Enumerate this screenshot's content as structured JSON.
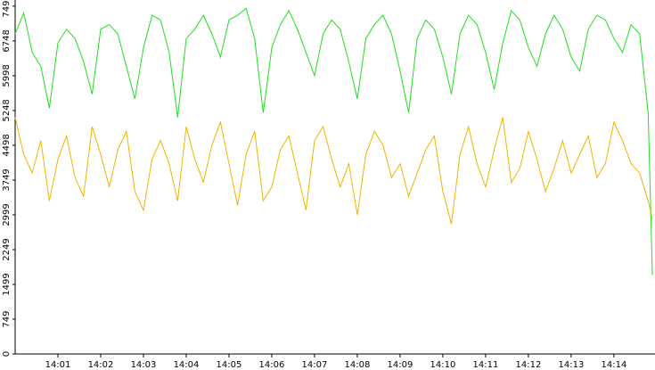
{
  "chart_data": {
    "type": "line",
    "x": [
      0,
      0.2,
      0.4,
      0.6,
      0.8,
      1,
      1.2,
      1.4,
      1.6,
      1.8,
      2,
      2.2,
      2.4,
      2.6,
      2.8,
      3,
      3.2,
      3.4,
      3.6,
      3.8,
      4,
      4.2,
      4.4,
      4.6,
      4.8,
      5,
      5.2,
      5.4,
      5.6,
      5.8,
      6,
      6.2,
      6.4,
      6.6,
      6.8,
      7,
      7.2,
      7.4,
      7.6,
      7.8,
      8,
      8.2,
      8.4,
      8.6,
      8.8,
      9,
      9.2,
      9.4,
      9.6,
      9.8,
      10,
      10.2,
      10.4,
      10.6,
      10.8,
      11,
      11.2,
      11.4,
      11.6,
      11.8,
      12,
      12.2,
      12.4,
      12.6,
      12.8,
      13,
      13.2,
      13.4,
      13.6,
      13.8,
      14,
      14.2,
      14.4,
      14.6,
      14.8,
      14.9
    ],
    "series": [
      {
        "color": "#22dd22",
        "values": [
          6900,
          7350,
          6500,
          6200,
          5300,
          6700,
          7000,
          6800,
          6300,
          5600,
          7000,
          7100,
          6900,
          6200,
          5500,
          6600,
          7300,
          7200,
          6500,
          5100,
          6800,
          7000,
          7300,
          6900,
          6400,
          7200,
          7300,
          7450,
          6800,
          5200,
          6600,
          7100,
          7400,
          7000,
          6500,
          6000,
          6900,
          7200,
          7000,
          6300,
          5500,
          6800,
          7100,
          7300,
          6900,
          6100,
          5200,
          6800,
          7200,
          7000,
          6400,
          5600,
          6900,
          7300,
          7100,
          6500,
          5700,
          6700,
          7400,
          7200,
          6600,
          6200,
          6900,
          7300,
          7000,
          6400,
          6100,
          7000,
          7300,
          7200,
          6800,
          6500,
          7100,
          6900,
          5200,
          1700
        ]
      },
      {
        "color": "#f0b400",
        "values": [
          5100,
          4300,
          3900,
          4600,
          3300,
          4200,
          4700,
          3800,
          3400,
          4900,
          4300,
          3600,
          4400,
          4800,
          3500,
          3100,
          4200,
          4600,
          4100,
          3300,
          4900,
          4200,
          3700,
          4500,
          5000,
          4100,
          3200,
          4300,
          4800,
          3300,
          3600,
          4400,
          4700,
          3900,
          3100,
          4600,
          4900,
          4200,
          3600,
          4100,
          3000,
          4300,
          4800,
          4500,
          3800,
          4100,
          3400,
          3900,
          4400,
          4700,
          3500,
          2800,
          4300,
          4900,
          4100,
          3600,
          4400,
          5100,
          3700,
          4000,
          4800,
          4200,
          3500,
          4000,
          4600,
          3900,
          4300,
          4700,
          3800,
          4100,
          5000,
          4600,
          4100,
          3900,
          3300,
          2900
        ]
      }
    ],
    "xlim": [
      0,
      14.96
    ],
    "xticks": [
      {
        "value": 1,
        "label": "14:01"
      },
      {
        "value": 2,
        "label": "14:02"
      },
      {
        "value": 3,
        "label": "14:03"
      },
      {
        "value": 4,
        "label": "14:04"
      },
      {
        "value": 5,
        "label": "14:05"
      },
      {
        "value": 6,
        "label": "14:06"
      },
      {
        "value": 7,
        "label": "14:07"
      },
      {
        "value": 8,
        "label": "14:08"
      },
      {
        "value": 9,
        "label": "14:09"
      },
      {
        "value": 10,
        "label": "14:10"
      },
      {
        "value": 11,
        "label": "14:11"
      },
      {
        "value": 12,
        "label": "14:12"
      },
      {
        "value": 13,
        "label": "14:13"
      },
      {
        "value": 14,
        "label": "14:14"
      }
    ],
    "ylim": [
      0,
      7630
    ],
    "yticks": [
      0,
      749,
      1499,
      2249,
      2999,
      3749,
      4498,
      5248,
      5998,
      6748,
      7498
    ]
  }
}
